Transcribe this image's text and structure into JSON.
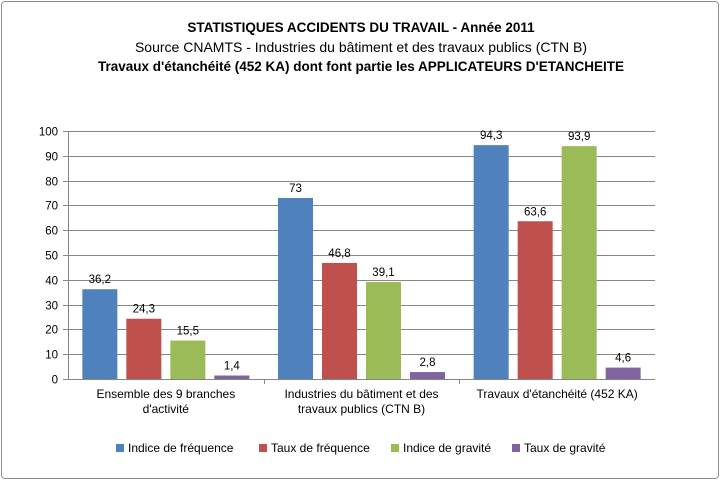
{
  "chart_data": {
    "type": "bar",
    "title": "STATISTIQUES ACCIDENTS DU TRAVAIL - Année 2011",
    "subtitle": "Source CNAMTS - Industries du bâtiment et des travaux publics (CTN B)",
    "subtitle2": "Travaux d'étanchéité (452 KA) dont font partie les APPLICATEURS D'ETANCHEITE",
    "categories": [
      [
        "Ensemble des 9 branches",
        "d'activité"
      ],
      [
        "Industries du bâtiment et des",
        "travaux publics (CTN B)"
      ],
      [
        "Travaux d'étanchéité (452 KA)"
      ]
    ],
    "series": [
      {
        "name": "Indice de fréquence",
        "color": "#4f81bd",
        "values": [
          36.2,
          73,
          94.3
        ],
        "labels": [
          "36,2",
          "73",
          "94,3"
        ]
      },
      {
        "name": "Taux de fréquence",
        "color": "#c0504d",
        "values": [
          24.3,
          46.8,
          63.6
        ],
        "labels": [
          "24,3",
          "46,8",
          "63,6"
        ]
      },
      {
        "name": "Indice de gravité",
        "color": "#9bbb59",
        "values": [
          15.5,
          39.1,
          93.9
        ],
        "labels": [
          "15,5",
          "39,1",
          "93,9"
        ]
      },
      {
        "name": "Taux de gravité",
        "color": "#8064a2",
        "values": [
          1.4,
          2.8,
          4.6
        ],
        "labels": [
          "1,4",
          "2,8",
          "4,6"
        ]
      }
    ],
    "yticks": [
      "0",
      "10",
      "20",
      "30",
      "40",
      "50",
      "60",
      "70",
      "80",
      "90",
      "100"
    ],
    "ylim": [
      0,
      100
    ],
    "grid": true,
    "legend_position": "bottom"
  }
}
